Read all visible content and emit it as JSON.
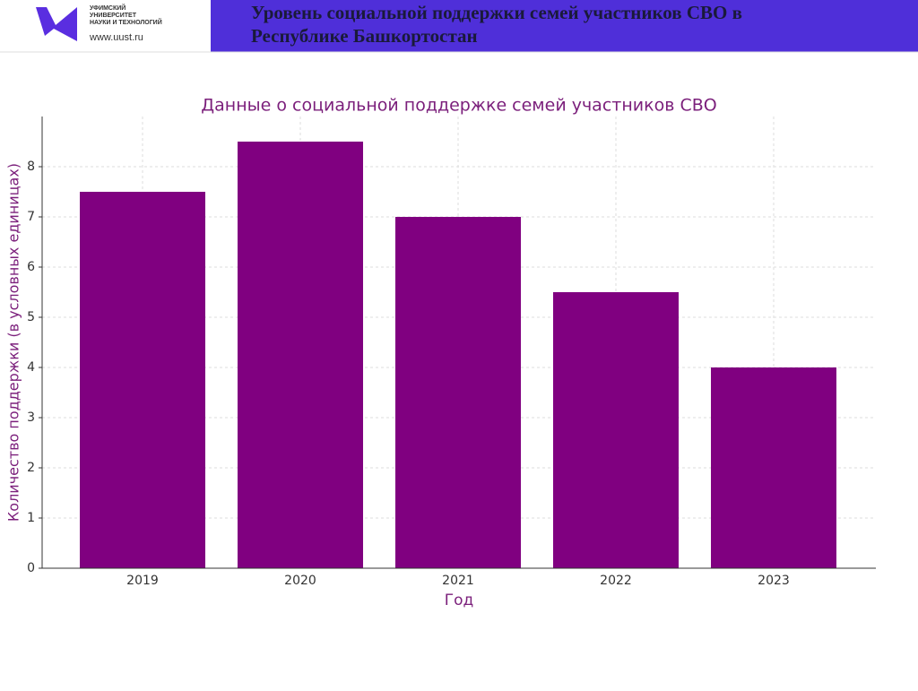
{
  "header": {
    "logo_lines": [
      "УФИМСКИЙ",
      "УНИВЕРСИТЕТ",
      "НАУКИ И ТЕХНОЛОГИЙ"
    ],
    "logo_url": "www.uust.ru",
    "title_lines": [
      "Уровень социальной поддержки семей участников СВО в",
      "Республике Башкортостан"
    ]
  },
  "chart_data": {
    "type": "bar",
    "title": "Данные о социальной поддержке семей участников СВО",
    "x_label": "Год",
    "y_label": "Количество поддержки (в условных единицах)",
    "categories": [
      "2019",
      "2020",
      "2021",
      "2022",
      "2023"
    ],
    "values": [
      7.5,
      8.5,
      7,
      5.5,
      4
    ],
    "color": "#800080",
    "ylim": [
      0,
      9
    ],
    "yticks": [
      0,
      1,
      2,
      3,
      4,
      5,
      6,
      7,
      8
    ],
    "grid": true
  }
}
